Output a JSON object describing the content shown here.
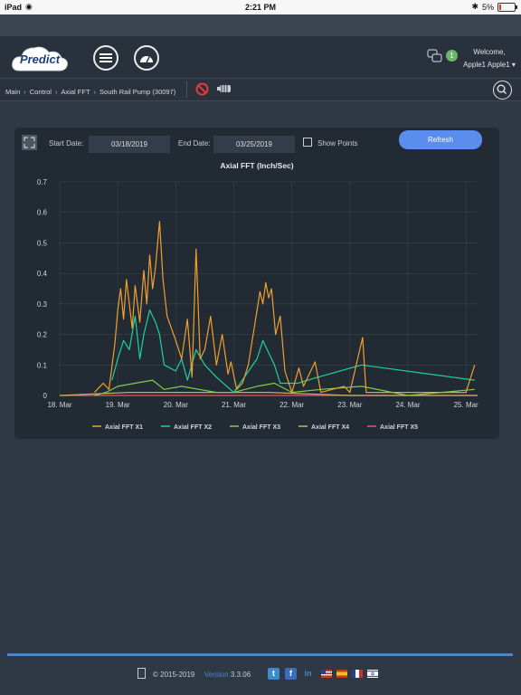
{
  "status_bar": {
    "device": "iPad",
    "time": "2:21 PM",
    "battery": "5%"
  },
  "header": {
    "logo_text": "Predict",
    "notification_count": "1",
    "welcome_text": "Welcome,",
    "user_name": "Apple1 Apple1 ▾"
  },
  "breadcrumb": {
    "items": [
      "Main",
      "Control",
      "Axial FFT",
      "South Rail Pump (30097)"
    ]
  },
  "controls": {
    "start_label": "Start Date:",
    "start_value": "03/18/2019",
    "end_label": "End Date:",
    "end_value": "03/25/2019",
    "show_points_label": "Show Points",
    "refresh_label": "Refresh"
  },
  "chart_data": {
    "type": "line",
    "title": "Axial FFT (Inch/Sec)",
    "xlabel": "",
    "ylabel": "",
    "ylim": [
      0,
      0.7
    ],
    "yticks": [
      "0",
      "0.1",
      "0.2",
      "0.3",
      "0.4",
      "0.5",
      "0.6",
      "0.7"
    ],
    "xticks": [
      "18. Mar",
      "19. Mar",
      "20. Mar",
      "21. Mar",
      "22. Mar",
      "23. Mar",
      "24. Mar",
      "25. Mar"
    ],
    "xlim": [
      0,
      7.2
    ],
    "grid": true,
    "legend_position": "bottom",
    "series": [
      {
        "name": "Axial FFT X1",
        "color": "#f0a12e",
        "points": [
          [
            0.6,
            0.01
          ],
          [
            0.75,
            0.04
          ],
          [
            0.85,
            0.02
          ],
          [
            0.95,
            0.17
          ],
          [
            1.0,
            0.28
          ],
          [
            1.05,
            0.35
          ],
          [
            1.1,
            0.25
          ],
          [
            1.15,
            0.38
          ],
          [
            1.2,
            0.3
          ],
          [
            1.25,
            0.22
          ],
          [
            1.3,
            0.36
          ],
          [
            1.38,
            0.24
          ],
          [
            1.45,
            0.41
          ],
          [
            1.5,
            0.3
          ],
          [
            1.55,
            0.46
          ],
          [
            1.6,
            0.35
          ],
          [
            1.65,
            0.42
          ],
          [
            1.72,
            0.57
          ],
          [
            1.78,
            0.38
          ],
          [
            1.85,
            0.26
          ],
          [
            2.0,
            0.18
          ],
          [
            2.1,
            0.12
          ],
          [
            2.2,
            0.25
          ],
          [
            2.28,
            0.06
          ],
          [
            2.35,
            0.48
          ],
          [
            2.42,
            0.12
          ],
          [
            2.5,
            0.15
          ],
          [
            2.6,
            0.26
          ],
          [
            2.7,
            0.1
          ],
          [
            2.8,
            0.2
          ],
          [
            2.9,
            0.07
          ],
          [
            2.95,
            0.11
          ],
          [
            3.05,
            0.02
          ],
          [
            3.15,
            0.04
          ],
          [
            3.25,
            0.1
          ],
          [
            3.35,
            0.22
          ],
          [
            3.4,
            0.28
          ],
          [
            3.45,
            0.34
          ],
          [
            3.5,
            0.3
          ],
          [
            3.55,
            0.37
          ],
          [
            3.6,
            0.32
          ],
          [
            3.65,
            0.35
          ],
          [
            3.72,
            0.2
          ],
          [
            3.8,
            0.26
          ],
          [
            3.88,
            0.08
          ],
          [
            4.0,
            0.01
          ],
          [
            4.12,
            0.09
          ],
          [
            4.2,
            0.03
          ],
          [
            4.4,
            0.11
          ],
          [
            4.5,
            0.01
          ],
          [
            4.9,
            0.03
          ],
          [
            5.0,
            0.01
          ],
          [
            5.22,
            0.19
          ],
          [
            5.28,
            0.01
          ],
          [
            6.0,
            0.01
          ],
          [
            7.0,
            0.01
          ],
          [
            7.15,
            0.1
          ]
        ]
      },
      {
        "name": "Axial FFT X2",
        "color": "#1ed1a0",
        "points": [
          [
            0.9,
            0.05
          ],
          [
            1.0,
            0.12
          ],
          [
            1.1,
            0.18
          ],
          [
            1.2,
            0.15
          ],
          [
            1.3,
            0.26
          ],
          [
            1.38,
            0.12
          ],
          [
            1.45,
            0.2
          ],
          [
            1.55,
            0.28
          ],
          [
            1.65,
            0.24
          ],
          [
            1.72,
            0.2
          ],
          [
            1.8,
            0.1
          ],
          [
            2.0,
            0.08
          ],
          [
            2.1,
            0.12
          ],
          [
            2.2,
            0.05
          ],
          [
            2.35,
            0.15
          ],
          [
            2.5,
            0.1
          ],
          [
            2.7,
            0.06
          ],
          [
            3.0,
            0.01
          ],
          [
            3.4,
            0.12
          ],
          [
            3.5,
            0.18
          ],
          [
            3.6,
            0.14
          ],
          [
            3.7,
            0.1
          ],
          [
            3.8,
            0.04
          ],
          [
            4.1,
            0.04
          ],
          [
            4.45,
            0.06
          ],
          [
            5.2,
            0.1
          ],
          [
            7.15,
            0.05
          ]
        ]
      },
      {
        "name": "Axial FFT X3",
        "color": "#7fce45",
        "points": [
          [
            0.6,
            0.0
          ],
          [
            0.8,
            0.01
          ],
          [
            1.0,
            0.03
          ],
          [
            1.3,
            0.04
          ],
          [
            1.6,
            0.05
          ],
          [
            1.8,
            0.02
          ],
          [
            2.1,
            0.03
          ],
          [
            2.4,
            0.02
          ],
          [
            2.7,
            0.01
          ],
          [
            3.0,
            0.01
          ],
          [
            3.4,
            0.03
          ],
          [
            3.7,
            0.04
          ],
          [
            4.0,
            0.01
          ],
          [
            4.5,
            0.02
          ],
          [
            5.2,
            0.03
          ],
          [
            6.0,
            0.0
          ],
          [
            7.15,
            0.02
          ]
        ]
      },
      {
        "name": "Axial FFT X4",
        "color": "#c8b06a",
        "points": [
          [
            0.0,
            0.0
          ],
          [
            1.2,
            0.01
          ],
          [
            2.5,
            0.01
          ],
          [
            3.6,
            0.01
          ],
          [
            5.0,
            0.0
          ],
          [
            7.2,
            0.0
          ]
        ]
      },
      {
        "name": "Axial FFT X5",
        "color": "#e8556b",
        "points": [
          [
            0.0,
            0.0
          ],
          [
            1.5,
            0.0
          ],
          [
            3.0,
            0.0
          ],
          [
            5.0,
            0.0
          ],
          [
            7.2,
            0.0
          ]
        ]
      }
    ]
  },
  "footer": {
    "copyright": "© 2015-2019",
    "version_label": "Version",
    "version_number": "3.3.06"
  }
}
